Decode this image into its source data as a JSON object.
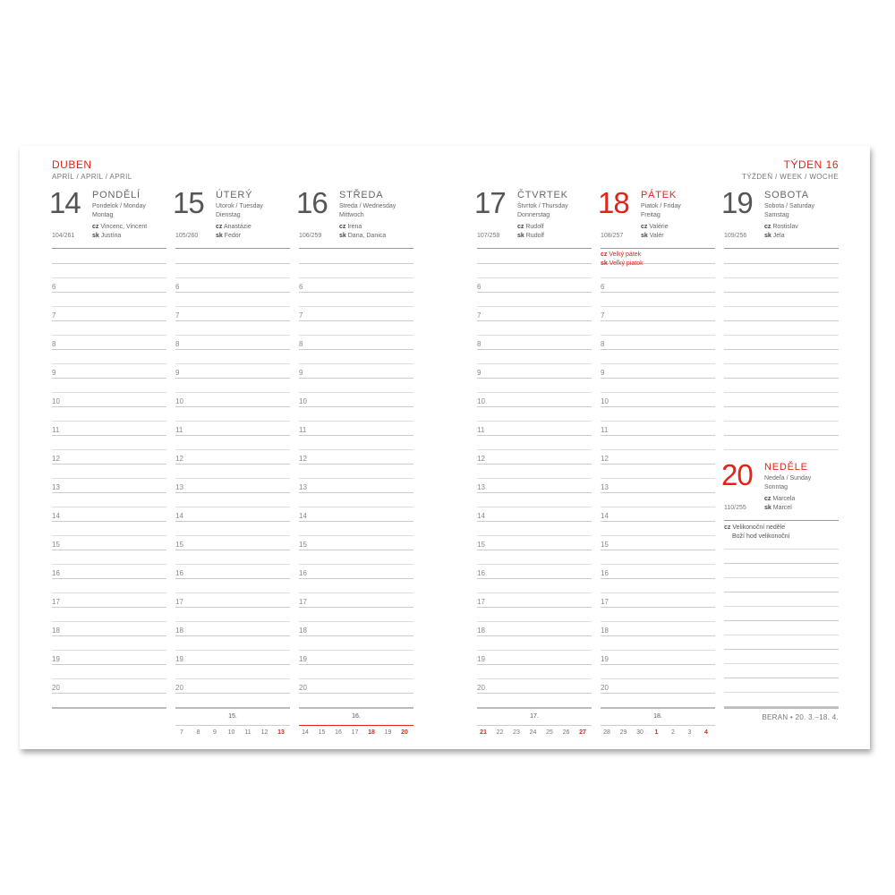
{
  "month": {
    "title": "DUBEN",
    "subtitle": "APRÍL / APRIL / APRIL"
  },
  "week": {
    "title": "TÝDEN 16",
    "subtitle": "TÝŽDEŇ / WEEK / WOCHE"
  },
  "hours": [
    "6",
    "7",
    "8",
    "9",
    "10",
    "11",
    "12",
    "13",
    "14",
    "15",
    "16",
    "17",
    "18",
    "19",
    "20"
  ],
  "days": [
    {
      "num": "14",
      "name": "PONDĚLÍ",
      "sub1": "Pondelok / Monday",
      "sub2": "Montag",
      "cz": "Vincenc, Vincent",
      "sk": "Justína",
      "count": "104/261",
      "red": false
    },
    {
      "num": "15",
      "name": "ÚTERÝ",
      "sub1": "Utorok / Tuesday",
      "sub2": "Dienstag",
      "cz": "Anastázie",
      "sk": "Fedor",
      "count": "105/260",
      "red": false
    },
    {
      "num": "16",
      "name": "STŘEDA",
      "sub1": "Streda / Wednesday",
      "sub2": "Mittwoch",
      "cz": "Irena",
      "sk": "Dana, Danica",
      "count": "106/259",
      "red": false
    },
    {
      "num": "17",
      "name": "ČTVRTEK",
      "sub1": "Štvrtok / Thursday",
      "sub2": "Donnerstag",
      "cz": "Rudolf",
      "sk": "Rudolf",
      "count": "107/258",
      "red": false
    },
    {
      "num": "18",
      "name": "PÁTEK",
      "sub1": "Piatok / Friday",
      "sub2": "Freitag",
      "cz": "Valérie",
      "sk": "Valér",
      "count": "108/257",
      "red": true,
      "holiday_cz": "Velký pátek",
      "holiday_sk": "Veľký piatok"
    },
    {
      "num": "19",
      "name": "SOBOTA",
      "sub1": "Sobota / Saturday",
      "sub2": "Samstag",
      "cz": "Rostislav",
      "sk": "Jela",
      "count": "109/256",
      "red": false
    },
    {
      "num": "20",
      "name": "NEDĚLE",
      "sub1": "Nedeľa / Sunday",
      "sub2": "Sonntag",
      "cz": "Marcela",
      "sk": "Marcel",
      "count": "110/255",
      "red": true,
      "holiday_cz": "Velikonoční neděle",
      "holiday_cz2": "Boží hod velikonoční"
    }
  ],
  "labels": {
    "cz": "cz",
    "sk": "sk"
  },
  "mini_calendars": [
    {
      "week": "15.",
      "current": false,
      "days": [
        {
          "d": "7"
        },
        {
          "d": "8"
        },
        {
          "d": "9"
        },
        {
          "d": "10"
        },
        {
          "d": "11"
        },
        {
          "d": "12"
        },
        {
          "d": "13",
          "red": true
        }
      ]
    },
    {
      "week": "16.",
      "current": true,
      "days": [
        {
          "d": "14"
        },
        {
          "d": "15"
        },
        {
          "d": "16"
        },
        {
          "d": "17"
        },
        {
          "d": "18",
          "red": true
        },
        {
          "d": "19"
        },
        {
          "d": "20",
          "red": true
        }
      ]
    },
    {
      "week": "17.",
      "current": false,
      "days": [
        {
          "d": "21",
          "red": true
        },
        {
          "d": "22"
        },
        {
          "d": "23"
        },
        {
          "d": "24"
        },
        {
          "d": "25"
        },
        {
          "d": "26"
        },
        {
          "d": "27",
          "red": true
        }
      ]
    },
    {
      "week": "18.",
      "current": false,
      "days": [
        {
          "d": "28"
        },
        {
          "d": "29"
        },
        {
          "d": "30"
        },
        {
          "d": "1",
          "red": true
        },
        {
          "d": "2"
        },
        {
          "d": "3"
        },
        {
          "d": "4",
          "red": true
        }
      ]
    }
  ],
  "footer": "BERAN • 20. 3.–18. 4.",
  "colors": {
    "accent": "#e2231a",
    "text": "#555555"
  }
}
